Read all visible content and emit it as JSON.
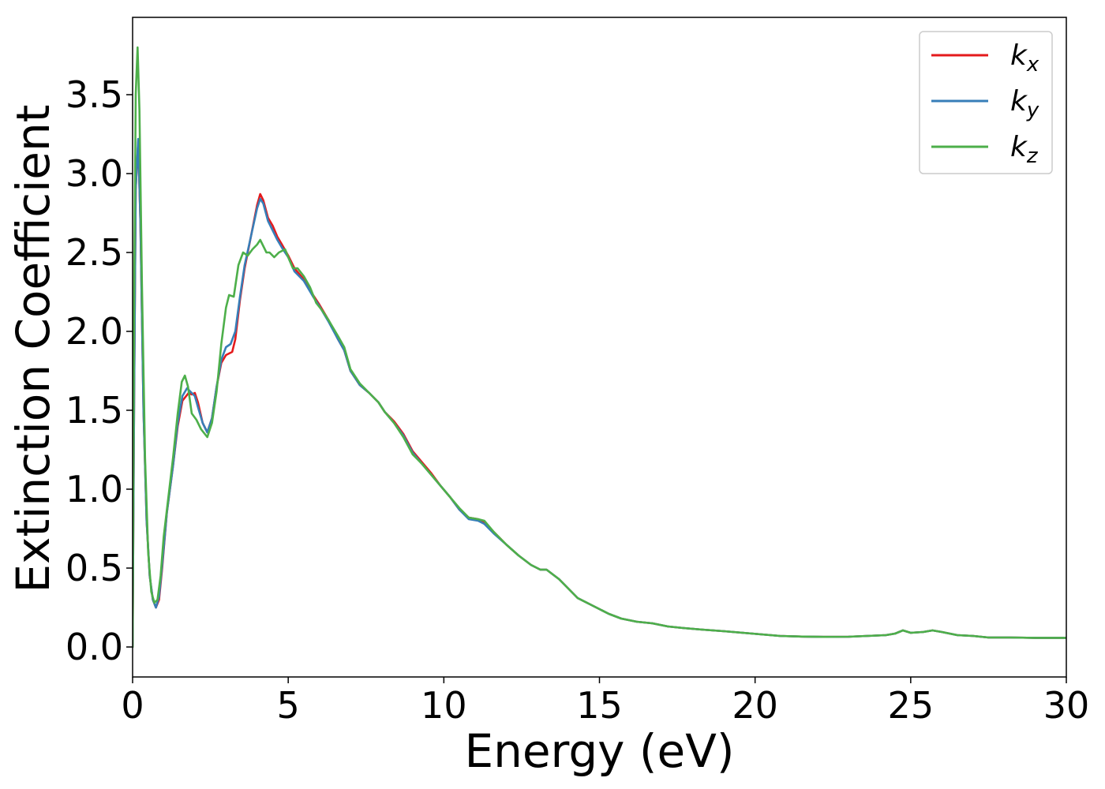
{
  "chart_data": {
    "type": "line",
    "title": "",
    "xlabel": "Energy (eV)",
    "ylabel": "Extinction Coefficient",
    "xlim": [
      0,
      30
    ],
    "ylim": [
      -0.19,
      3.99
    ],
    "xticks": [
      0,
      5,
      10,
      15,
      20,
      25,
      30
    ],
    "xtick_labels": [
      "0",
      "5",
      "10",
      "15",
      "20",
      "25",
      "30"
    ],
    "yticks": [
      0.0,
      0.5,
      1.0,
      1.5,
      2.0,
      2.5,
      3.0,
      3.5
    ],
    "ytick_labels": [
      "0.0",
      "0.5",
      "1.0",
      "1.5",
      "2.0",
      "2.5",
      "3.0",
      "3.5"
    ],
    "grid": false,
    "legend_position": "top-right",
    "series": [
      {
        "name": "k",
        "subscript": "x",
        "color": "#e41a1c",
        "points": [
          [
            0,
            0
          ],
          [
            0.05,
            1.6
          ],
          [
            0.1,
            2.9
          ],
          [
            0.18,
            3.2
          ],
          [
            0.25,
            2.7
          ],
          [
            0.35,
            1.5
          ],
          [
            0.45,
            0.8
          ],
          [
            0.55,
            0.45
          ],
          [
            0.65,
            0.3
          ],
          [
            0.75,
            0.25
          ],
          [
            0.85,
            0.3
          ],
          [
            0.95,
            0.5
          ],
          [
            1.1,
            0.85
          ],
          [
            1.3,
            1.15
          ],
          [
            1.45,
            1.4
          ],
          [
            1.6,
            1.56
          ],
          [
            1.8,
            1.61
          ],
          [
            1.9,
            1.6
          ],
          [
            2.0,
            1.61
          ],
          [
            2.1,
            1.55
          ],
          [
            2.25,
            1.42
          ],
          [
            2.4,
            1.36
          ],
          [
            2.55,
            1.45
          ],
          [
            2.7,
            1.65
          ],
          [
            2.85,
            1.8
          ],
          [
            3.0,
            1.85
          ],
          [
            3.2,
            1.87
          ],
          [
            3.3,
            1.95
          ],
          [
            3.45,
            2.2
          ],
          [
            3.6,
            2.4
          ],
          [
            3.8,
            2.6
          ],
          [
            4.0,
            2.8
          ],
          [
            4.1,
            2.87
          ],
          [
            4.2,
            2.83
          ],
          [
            4.35,
            2.72
          ],
          [
            4.5,
            2.67
          ],
          [
            4.65,
            2.6
          ],
          [
            4.8,
            2.55
          ],
          [
            5.0,
            2.48
          ],
          [
            5.2,
            2.4
          ],
          [
            5.5,
            2.33
          ],
          [
            5.8,
            2.23
          ],
          [
            6.0,
            2.17
          ],
          [
            6.3,
            2.07
          ],
          [
            6.6,
            1.95
          ],
          [
            6.8,
            1.88
          ],
          [
            7.0,
            1.75
          ],
          [
            7.3,
            1.66
          ],
          [
            7.6,
            1.61
          ],
          [
            7.9,
            1.55
          ],
          [
            8.1,
            1.49
          ],
          [
            8.4,
            1.43
          ],
          [
            8.7,
            1.35
          ],
          [
            9.0,
            1.24
          ],
          [
            9.3,
            1.17
          ],
          [
            9.6,
            1.1
          ],
          [
            9.9,
            1.02
          ],
          [
            10.2,
            0.95
          ],
          [
            10.5,
            0.87
          ],
          [
            10.8,
            0.82
          ],
          [
            11.1,
            0.81
          ],
          [
            11.3,
            0.79
          ],
          [
            11.6,
            0.73
          ],
          [
            12.0,
            0.65
          ],
          [
            12.4,
            0.58
          ],
          [
            12.8,
            0.52
          ],
          [
            13.1,
            0.49
          ],
          [
            13.3,
            0.49
          ],
          [
            13.7,
            0.43
          ],
          [
            14.0,
            0.37
          ],
          [
            14.3,
            0.31
          ],
          [
            14.7,
            0.27
          ],
          [
            15.0,
            0.24
          ],
          [
            15.3,
            0.21
          ],
          [
            15.7,
            0.18
          ],
          [
            16.2,
            0.16
          ],
          [
            16.7,
            0.15
          ],
          [
            17.2,
            0.13
          ],
          [
            17.7,
            0.12
          ],
          [
            18.3,
            0.11
          ],
          [
            19.0,
            0.1
          ],
          [
            19.6,
            0.09
          ],
          [
            20.2,
            0.08
          ],
          [
            20.8,
            0.07
          ],
          [
            21.5,
            0.066
          ],
          [
            22.2,
            0.064
          ],
          [
            23.0,
            0.065
          ],
          [
            23.6,
            0.07
          ],
          [
            24.2,
            0.075
          ],
          [
            24.5,
            0.085
          ],
          [
            24.75,
            0.105
          ],
          [
            25.0,
            0.09
          ],
          [
            25.4,
            0.095
          ],
          [
            25.7,
            0.105
          ],
          [
            26.0,
            0.095
          ],
          [
            26.5,
            0.075
          ],
          [
            27.0,
            0.07
          ],
          [
            27.5,
            0.06
          ],
          [
            28.2,
            0.06
          ],
          [
            29.0,
            0.058
          ],
          [
            30.0,
            0.058
          ]
        ]
      },
      {
        "name": "k",
        "subscript": "y",
        "color": "#377eb8",
        "points": [
          [
            0,
            0
          ],
          [
            0.05,
            1.6
          ],
          [
            0.1,
            2.9
          ],
          [
            0.18,
            3.22
          ],
          [
            0.25,
            2.7
          ],
          [
            0.35,
            1.5
          ],
          [
            0.45,
            0.8
          ],
          [
            0.55,
            0.45
          ],
          [
            0.65,
            0.3
          ],
          [
            0.75,
            0.25
          ],
          [
            0.85,
            0.32
          ],
          [
            0.95,
            0.52
          ],
          [
            1.1,
            0.85
          ],
          [
            1.3,
            1.15
          ],
          [
            1.45,
            1.42
          ],
          [
            1.6,
            1.59
          ],
          [
            1.75,
            1.64
          ],
          [
            1.9,
            1.61
          ],
          [
            2.0,
            1.59
          ],
          [
            2.1,
            1.52
          ],
          [
            2.25,
            1.42
          ],
          [
            2.4,
            1.36
          ],
          [
            2.55,
            1.45
          ],
          [
            2.7,
            1.65
          ],
          [
            2.85,
            1.82
          ],
          [
            3.0,
            1.9
          ],
          [
            3.15,
            1.92
          ],
          [
            3.3,
            2.0
          ],
          [
            3.45,
            2.22
          ],
          [
            3.6,
            2.42
          ],
          [
            3.8,
            2.6
          ],
          [
            4.0,
            2.78
          ],
          [
            4.1,
            2.84
          ],
          [
            4.2,
            2.81
          ],
          [
            4.35,
            2.7
          ],
          [
            4.5,
            2.64
          ],
          [
            4.65,
            2.58
          ],
          [
            4.8,
            2.53
          ],
          [
            5.0,
            2.47
          ],
          [
            5.2,
            2.38
          ],
          [
            5.5,
            2.32
          ],
          [
            5.8,
            2.22
          ],
          [
            6.0,
            2.16
          ],
          [
            6.3,
            2.06
          ],
          [
            6.6,
            1.95
          ],
          [
            6.8,
            1.88
          ],
          [
            7.0,
            1.75
          ],
          [
            7.3,
            1.66
          ],
          [
            7.6,
            1.61
          ],
          [
            7.9,
            1.55
          ],
          [
            8.1,
            1.49
          ],
          [
            8.4,
            1.42
          ],
          [
            8.7,
            1.34
          ],
          [
            9.0,
            1.23
          ],
          [
            9.3,
            1.16
          ],
          [
            9.6,
            1.09
          ],
          [
            9.9,
            1.02
          ],
          [
            10.2,
            0.95
          ],
          [
            10.5,
            0.87
          ],
          [
            10.8,
            0.81
          ],
          [
            11.1,
            0.8
          ],
          [
            11.3,
            0.78
          ],
          [
            11.6,
            0.72
          ],
          [
            12.0,
            0.65
          ],
          [
            12.4,
            0.58
          ],
          [
            12.8,
            0.52
          ],
          [
            13.1,
            0.49
          ],
          [
            13.3,
            0.49
          ],
          [
            13.7,
            0.43
          ],
          [
            14.0,
            0.37
          ],
          [
            14.3,
            0.31
          ],
          [
            14.7,
            0.27
          ],
          [
            15.0,
            0.24
          ],
          [
            15.3,
            0.21
          ],
          [
            15.7,
            0.18
          ],
          [
            16.2,
            0.16
          ],
          [
            16.7,
            0.15
          ],
          [
            17.2,
            0.13
          ],
          [
            17.7,
            0.12
          ],
          [
            18.3,
            0.11
          ],
          [
            19.0,
            0.1
          ],
          [
            19.6,
            0.09
          ],
          [
            20.2,
            0.08
          ],
          [
            20.8,
            0.07
          ],
          [
            21.5,
            0.066
          ],
          [
            22.2,
            0.064
          ],
          [
            23.0,
            0.065
          ],
          [
            23.6,
            0.07
          ],
          [
            24.2,
            0.075
          ],
          [
            24.5,
            0.085
          ],
          [
            24.75,
            0.105
          ],
          [
            25.0,
            0.09
          ],
          [
            25.4,
            0.095
          ],
          [
            25.7,
            0.105
          ],
          [
            26.0,
            0.095
          ],
          [
            26.5,
            0.075
          ],
          [
            27.0,
            0.07
          ],
          [
            27.5,
            0.06
          ],
          [
            28.2,
            0.06
          ],
          [
            29.0,
            0.058
          ],
          [
            30.0,
            0.058
          ]
        ]
      },
      {
        "name": "k",
        "subscript": "z",
        "color": "#4daf4a",
        "points": [
          [
            0,
            0
          ],
          [
            0.05,
            2.2
          ],
          [
            0.1,
            3.5
          ],
          [
            0.16,
            3.8
          ],
          [
            0.22,
            3.4
          ],
          [
            0.3,
            2.3
          ],
          [
            0.4,
            1.2
          ],
          [
            0.5,
            0.6
          ],
          [
            0.6,
            0.35
          ],
          [
            0.7,
            0.28
          ],
          [
            0.8,
            0.3
          ],
          [
            0.9,
            0.45
          ],
          [
            1.0,
            0.7
          ],
          [
            1.15,
            0.95
          ],
          [
            1.3,
            1.2
          ],
          [
            1.45,
            1.48
          ],
          [
            1.58,
            1.68
          ],
          [
            1.68,
            1.72
          ],
          [
            1.78,
            1.65
          ],
          [
            1.9,
            1.48
          ],
          [
            2.05,
            1.44
          ],
          [
            2.2,
            1.38
          ],
          [
            2.4,
            1.33
          ],
          [
            2.55,
            1.42
          ],
          [
            2.7,
            1.62
          ],
          [
            2.85,
            1.92
          ],
          [
            3.0,
            2.15
          ],
          [
            3.1,
            2.23
          ],
          [
            3.25,
            2.22
          ],
          [
            3.4,
            2.42
          ],
          [
            3.55,
            2.5
          ],
          [
            3.7,
            2.48
          ],
          [
            3.85,
            2.52
          ],
          [
            4.0,
            2.55
          ],
          [
            4.1,
            2.58
          ],
          [
            4.2,
            2.54
          ],
          [
            4.3,
            2.5
          ],
          [
            4.4,
            2.5
          ],
          [
            4.55,
            2.47
          ],
          [
            4.7,
            2.5
          ],
          [
            4.9,
            2.52
          ],
          [
            5.0,
            2.47
          ],
          [
            5.15,
            2.4
          ],
          [
            5.3,
            2.4
          ],
          [
            5.5,
            2.35
          ],
          [
            5.7,
            2.28
          ],
          [
            5.9,
            2.18
          ],
          [
            6.1,
            2.13
          ],
          [
            6.3,
            2.07
          ],
          [
            6.6,
            1.97
          ],
          [
            6.8,
            1.9
          ],
          [
            7.0,
            1.76
          ],
          [
            7.3,
            1.67
          ],
          [
            7.6,
            1.61
          ],
          [
            7.9,
            1.55
          ],
          [
            8.1,
            1.49
          ],
          [
            8.4,
            1.42
          ],
          [
            8.7,
            1.33
          ],
          [
            9.0,
            1.22
          ],
          [
            9.3,
            1.16
          ],
          [
            9.6,
            1.09
          ],
          [
            9.9,
            1.02
          ],
          [
            10.2,
            0.95
          ],
          [
            10.5,
            0.88
          ],
          [
            10.8,
            0.82
          ],
          [
            11.1,
            0.81
          ],
          [
            11.3,
            0.8
          ],
          [
            11.6,
            0.73
          ],
          [
            12.0,
            0.65
          ],
          [
            12.4,
            0.58
          ],
          [
            12.8,
            0.52
          ],
          [
            13.1,
            0.49
          ],
          [
            13.3,
            0.49
          ],
          [
            13.7,
            0.43
          ],
          [
            14.0,
            0.37
          ],
          [
            14.3,
            0.31
          ],
          [
            14.7,
            0.27
          ],
          [
            15.0,
            0.24
          ],
          [
            15.3,
            0.21
          ],
          [
            15.7,
            0.18
          ],
          [
            16.2,
            0.16
          ],
          [
            16.7,
            0.15
          ],
          [
            17.2,
            0.13
          ],
          [
            17.7,
            0.12
          ],
          [
            18.3,
            0.11
          ],
          [
            19.0,
            0.1
          ],
          [
            19.6,
            0.09
          ],
          [
            20.2,
            0.08
          ],
          [
            20.8,
            0.07
          ],
          [
            21.5,
            0.066
          ],
          [
            22.2,
            0.064
          ],
          [
            23.0,
            0.065
          ],
          [
            23.6,
            0.07
          ],
          [
            24.2,
            0.075
          ],
          [
            24.5,
            0.085
          ],
          [
            24.75,
            0.105
          ],
          [
            25.0,
            0.09
          ],
          [
            25.4,
            0.095
          ],
          [
            25.7,
            0.105
          ],
          [
            26.0,
            0.095
          ],
          [
            26.5,
            0.075
          ],
          [
            27.0,
            0.07
          ],
          [
            27.5,
            0.06
          ],
          [
            28.2,
            0.06
          ],
          [
            29.0,
            0.058
          ],
          [
            30.0,
            0.058
          ]
        ]
      }
    ]
  }
}
